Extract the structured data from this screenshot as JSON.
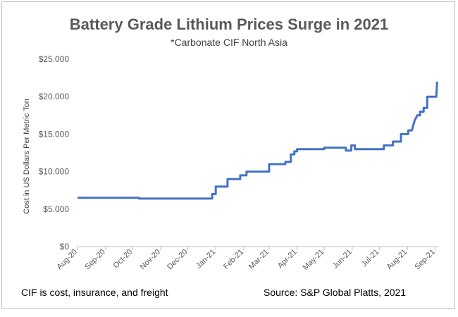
{
  "chart_data": {
    "type": "line",
    "title": "Battery Grade Lithium Prices Surge in 2021",
    "subtitle": "*Carbonate CIF North Asia",
    "xlabel": "",
    "ylabel": "Cost in US Dollars Per Metric Ton",
    "ylim": [
      0,
      25000
    ],
    "yticks": [
      0,
      5000,
      10000,
      15000,
      20000,
      25000
    ],
    "ytick_labels": [
      "$0",
      "$5.000",
      "$10.000",
      "$15.000",
      "$20.000",
      "$25.000"
    ],
    "xlim_days": [
      0,
      400
    ],
    "x_categories": [
      "Aug-20",
      "Sep-20",
      "Oct-20",
      "Nov-20",
      "Dec-20",
      "Jan-21",
      "Feb-21",
      "Mar-21",
      "Apr-21",
      "May-21",
      "Jun-21",
      "Jul-21",
      "Aug-21",
      "Sep-21"
    ],
    "x_tick_days": [
      0,
      31,
      61,
      92,
      122,
      153,
      184,
      212,
      243,
      273,
      304,
      334,
      365,
      396
    ],
    "grid": false,
    "legend": "none",
    "series": [
      {
        "name": "Lithium Carbonate CIF North Asia",
        "color": "#4472c4",
        "points": [
          [
            0,
            6500
          ],
          [
            68,
            6500
          ],
          [
            68,
            6400
          ],
          [
            149,
            6400
          ],
          [
            149,
            7000
          ],
          [
            153,
            7000
          ],
          [
            153,
            8000
          ],
          [
            166,
            8000
          ],
          [
            166,
            9000
          ],
          [
            180,
            9000
          ],
          [
            180,
            9500
          ],
          [
            187,
            9500
          ],
          [
            187,
            10000
          ],
          [
            212,
            10000
          ],
          [
            212,
            11000
          ],
          [
            230,
            11000
          ],
          [
            230,
            11300
          ],
          [
            236,
            11300
          ],
          [
            236,
            12300
          ],
          [
            240,
            12300
          ],
          [
            240,
            12700
          ],
          [
            243,
            12700
          ],
          [
            243,
            13000
          ],
          [
            273,
            13000
          ],
          [
            273,
            13200
          ],
          [
            297,
            13200
          ],
          [
            297,
            12800
          ],
          [
            303,
            12800
          ],
          [
            303,
            13500
          ],
          [
            307,
            13500
          ],
          [
            307,
            13000
          ],
          [
            339,
            13000
          ],
          [
            339,
            13500
          ],
          [
            349,
            13500
          ],
          [
            349,
            14000
          ],
          [
            358,
            14000
          ],
          [
            358,
            15000
          ],
          [
            366,
            15000
          ],
          [
            366,
            15500
          ],
          [
            370,
            15500
          ],
          [
            373,
            16800
          ],
          [
            376,
            17500
          ],
          [
            379,
            17500
          ],
          [
            379,
            18000
          ],
          [
            383,
            18000
          ],
          [
            383,
            18500
          ],
          [
            387,
            18500
          ],
          [
            387,
            20000
          ],
          [
            397,
            20000
          ],
          [
            398,
            22000
          ]
        ]
      }
    ]
  },
  "footnote": "CIF is cost, insurance, and freight",
  "source": "Source: S&P Global Platts, 2021"
}
